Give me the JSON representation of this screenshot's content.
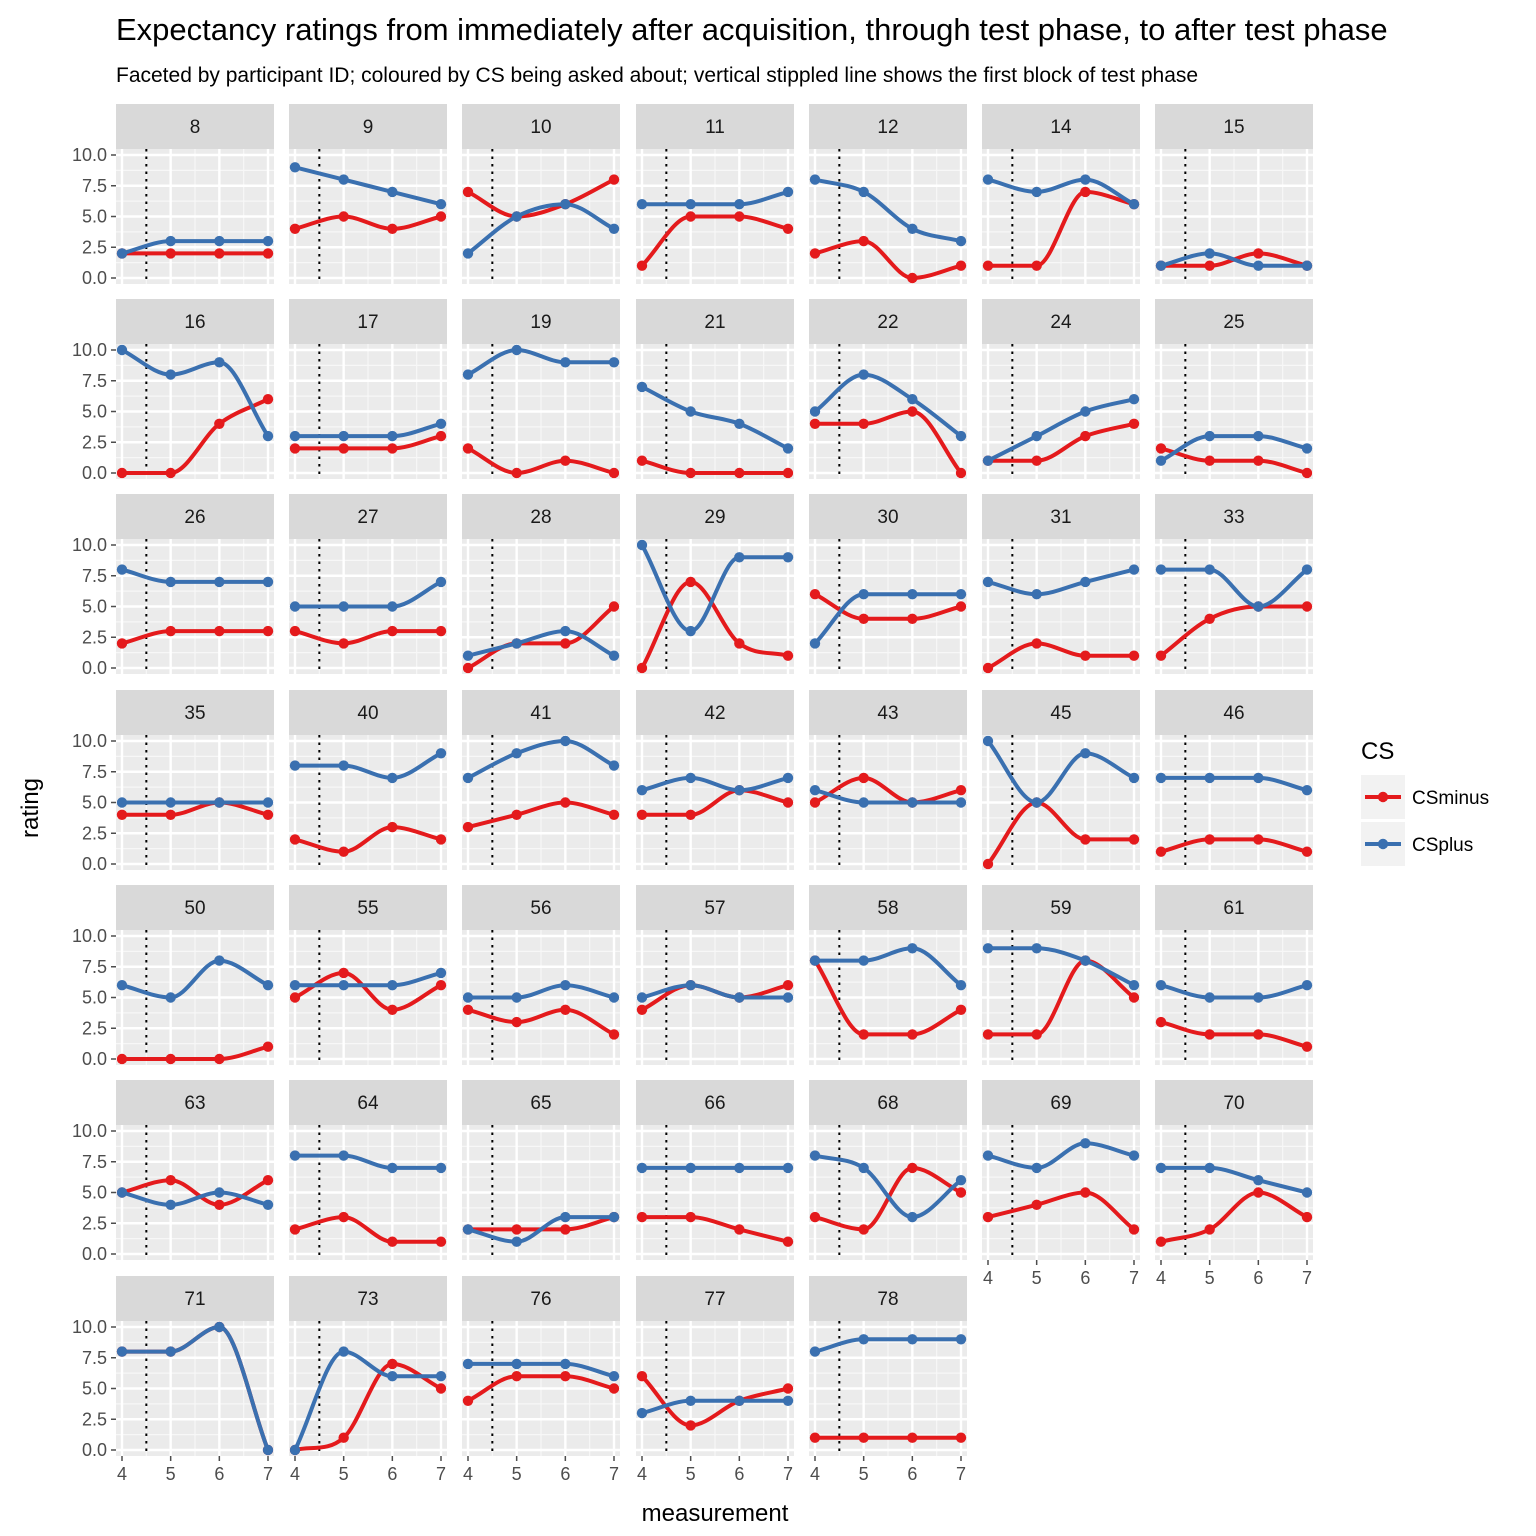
{
  "chart_data": {
    "type": "line",
    "title": "Expectancy ratings from immediately after acquisition, through test phase, to after test phase",
    "subtitle": "Faceted by participant ID; coloured by CS being asked about; vertical stippled line shows the first block of test phase",
    "xlabel": "measurement",
    "ylabel": "rating",
    "x": [
      4,
      5,
      6,
      7
    ],
    "x_ticks": [
      "4",
      "5",
      "6",
      "7"
    ],
    "y_ticks": [
      "0.0",
      "2.5",
      "5.0",
      "7.5",
      "10.0"
    ],
    "xlim": [
      4,
      7
    ],
    "ylim": [
      0,
      10
    ],
    "vline_x": 4.5,
    "grid": true,
    "legend": {
      "title": "CS",
      "position": "right",
      "entries": [
        {
          "name": "CSminus",
          "color": "#e41a1c"
        },
        {
          "name": "CSplus",
          "color": "#3a70b0"
        }
      ]
    },
    "facets": [
      {
        "id": "8",
        "CSminus": [
          2,
          2,
          2,
          2
        ],
        "CSplus": [
          2,
          3,
          3,
          3
        ]
      },
      {
        "id": "9",
        "CSminus": [
          4,
          5,
          4,
          5
        ],
        "CSplus": [
          9,
          8,
          7,
          6
        ]
      },
      {
        "id": "10",
        "CSminus": [
          7,
          5,
          6,
          8
        ],
        "CSplus": [
          2,
          5,
          6,
          4
        ]
      },
      {
        "id": "11",
        "CSminus": [
          1,
          5,
          5,
          4
        ],
        "CSplus": [
          6,
          6,
          6,
          7
        ]
      },
      {
        "id": "12",
        "CSminus": [
          2,
          3,
          0,
          1
        ],
        "CSplus": [
          8,
          7,
          4,
          3
        ]
      },
      {
        "id": "14",
        "CSminus": [
          1,
          1,
          7,
          6
        ],
        "CSplus": [
          8,
          7,
          8,
          6
        ]
      },
      {
        "id": "15",
        "CSminus": [
          1,
          1,
          2,
          1
        ],
        "CSplus": [
          1,
          2,
          1,
          1
        ]
      },
      {
        "id": "16",
        "CSminus": [
          0,
          0,
          4,
          6
        ],
        "CSplus": [
          10,
          8,
          9,
          3
        ]
      },
      {
        "id": "17",
        "CSminus": [
          2,
          2,
          2,
          3
        ],
        "CSplus": [
          3,
          3,
          3,
          4
        ]
      },
      {
        "id": "19",
        "CSminus": [
          2,
          0,
          1,
          0
        ],
        "CSplus": [
          8,
          10,
          9,
          9
        ]
      },
      {
        "id": "21",
        "CSminus": [
          1,
          0,
          0,
          0
        ],
        "CSplus": [
          7,
          5,
          4,
          2
        ]
      },
      {
        "id": "22",
        "CSminus": [
          4,
          4,
          5,
          0
        ],
        "CSplus": [
          5,
          8,
          6,
          3
        ]
      },
      {
        "id": "24",
        "CSminus": [
          1,
          1,
          3,
          4
        ],
        "CSplus": [
          1,
          3,
          5,
          6
        ]
      },
      {
        "id": "25",
        "CSminus": [
          2,
          1,
          1,
          0
        ],
        "CSplus": [
          1,
          3,
          3,
          2
        ]
      },
      {
        "id": "26",
        "CSminus": [
          2,
          3,
          3,
          3
        ],
        "CSplus": [
          8,
          7,
          7,
          7
        ]
      },
      {
        "id": "27",
        "CSminus": [
          3,
          2,
          3,
          3
        ],
        "CSplus": [
          5,
          5,
          5,
          7
        ]
      },
      {
        "id": "28",
        "CSminus": [
          0,
          2,
          2,
          5
        ],
        "CSplus": [
          1,
          2,
          3,
          1
        ]
      },
      {
        "id": "29",
        "CSminus": [
          0,
          7,
          2,
          1
        ],
        "CSplus": [
          10,
          3,
          9,
          9
        ]
      },
      {
        "id": "30",
        "CSminus": [
          6,
          4,
          4,
          5
        ],
        "CSplus": [
          2,
          6,
          6,
          6
        ]
      },
      {
        "id": "31",
        "CSminus": [
          0,
          2,
          1,
          1
        ],
        "CSplus": [
          7,
          6,
          7,
          8
        ]
      },
      {
        "id": "33",
        "CSminus": [
          1,
          4,
          5,
          5
        ],
        "CSplus": [
          8,
          8,
          5,
          8
        ]
      },
      {
        "id": "35",
        "CSminus": [
          4,
          4,
          5,
          4
        ],
        "CSplus": [
          5,
          5,
          5,
          5
        ]
      },
      {
        "id": "40",
        "CSminus": [
          2,
          1,
          3,
          2
        ],
        "CSplus": [
          8,
          8,
          7,
          9
        ]
      },
      {
        "id": "41",
        "CSminus": [
          3,
          4,
          5,
          4
        ],
        "CSplus": [
          7,
          9,
          10,
          8
        ]
      },
      {
        "id": "42",
        "CSminus": [
          4,
          4,
          6,
          5
        ],
        "CSplus": [
          6,
          7,
          6,
          7
        ]
      },
      {
        "id": "43",
        "CSminus": [
          5,
          7,
          5,
          6
        ],
        "CSplus": [
          6,
          5,
          5,
          5
        ]
      },
      {
        "id": "45",
        "CSminus": [
          0,
          5,
          2,
          2
        ],
        "CSplus": [
          10,
          5,
          9,
          7
        ]
      },
      {
        "id": "46",
        "CSminus": [
          1,
          2,
          2,
          1
        ],
        "CSplus": [
          7,
          7,
          7,
          6
        ]
      },
      {
        "id": "50",
        "CSminus": [
          0,
          0,
          0,
          1
        ],
        "CSplus": [
          6,
          5,
          8,
          6
        ]
      },
      {
        "id": "55",
        "CSminus": [
          5,
          7,
          4,
          6
        ],
        "CSplus": [
          6,
          6,
          6,
          7
        ]
      },
      {
        "id": "56",
        "CSminus": [
          4,
          3,
          4,
          2
        ],
        "CSplus": [
          5,
          5,
          6,
          5
        ]
      },
      {
        "id": "57",
        "CSminus": [
          4,
          6,
          5,
          6
        ],
        "CSplus": [
          5,
          6,
          5,
          5
        ]
      },
      {
        "id": "58",
        "CSminus": [
          8,
          2,
          2,
          4
        ],
        "CSplus": [
          8,
          8,
          9,
          6
        ]
      },
      {
        "id": "59",
        "CSminus": [
          2,
          2,
          8,
          5
        ],
        "CSplus": [
          9,
          9,
          8,
          6
        ]
      },
      {
        "id": "61",
        "CSminus": [
          3,
          2,
          2,
          1
        ],
        "CSplus": [
          6,
          5,
          5,
          6
        ]
      },
      {
        "id": "63",
        "CSminus": [
          5,
          6,
          4,
          6
        ],
        "CSplus": [
          5,
          4,
          5,
          4
        ]
      },
      {
        "id": "64",
        "CSminus": [
          2,
          3,
          1,
          1
        ],
        "CSplus": [
          8,
          8,
          7,
          7
        ]
      },
      {
        "id": "65",
        "CSminus": [
          2,
          2,
          2,
          3
        ],
        "CSplus": [
          2,
          1,
          3,
          3
        ]
      },
      {
        "id": "66",
        "CSminus": [
          3,
          3,
          2,
          1
        ],
        "CSplus": [
          7,
          7,
          7,
          7
        ]
      },
      {
        "id": "68",
        "CSminus": [
          3,
          2,
          7,
          5
        ],
        "CSplus": [
          8,
          7,
          3,
          6
        ]
      },
      {
        "id": "69",
        "CSminus": [
          3,
          4,
          5,
          2
        ],
        "CSplus": [
          8,
          7,
          9,
          8
        ]
      },
      {
        "id": "70",
        "CSminus": [
          1,
          2,
          5,
          3
        ],
        "CSplus": [
          7,
          7,
          6,
          5
        ]
      },
      {
        "id": "71",
        "CSminus": [
          8,
          8,
          10,
          0
        ],
        "CSplus": [
          8,
          8,
          10,
          0
        ]
      },
      {
        "id": "73",
        "CSminus": [
          0,
          1,
          7,
          5
        ],
        "CSplus": [
          0,
          8,
          6,
          6
        ]
      },
      {
        "id": "76",
        "CSminus": [
          4,
          6,
          6,
          5
        ],
        "CSplus": [
          7,
          7,
          7,
          6
        ]
      },
      {
        "id": "77",
        "CSminus": [
          6,
          2,
          4,
          5
        ],
        "CSplus": [
          3,
          4,
          4,
          4
        ]
      },
      {
        "id": "78",
        "CSminus": [
          1,
          1,
          1,
          1
        ],
        "CSplus": [
          8,
          9,
          9,
          9
        ]
      }
    ]
  }
}
